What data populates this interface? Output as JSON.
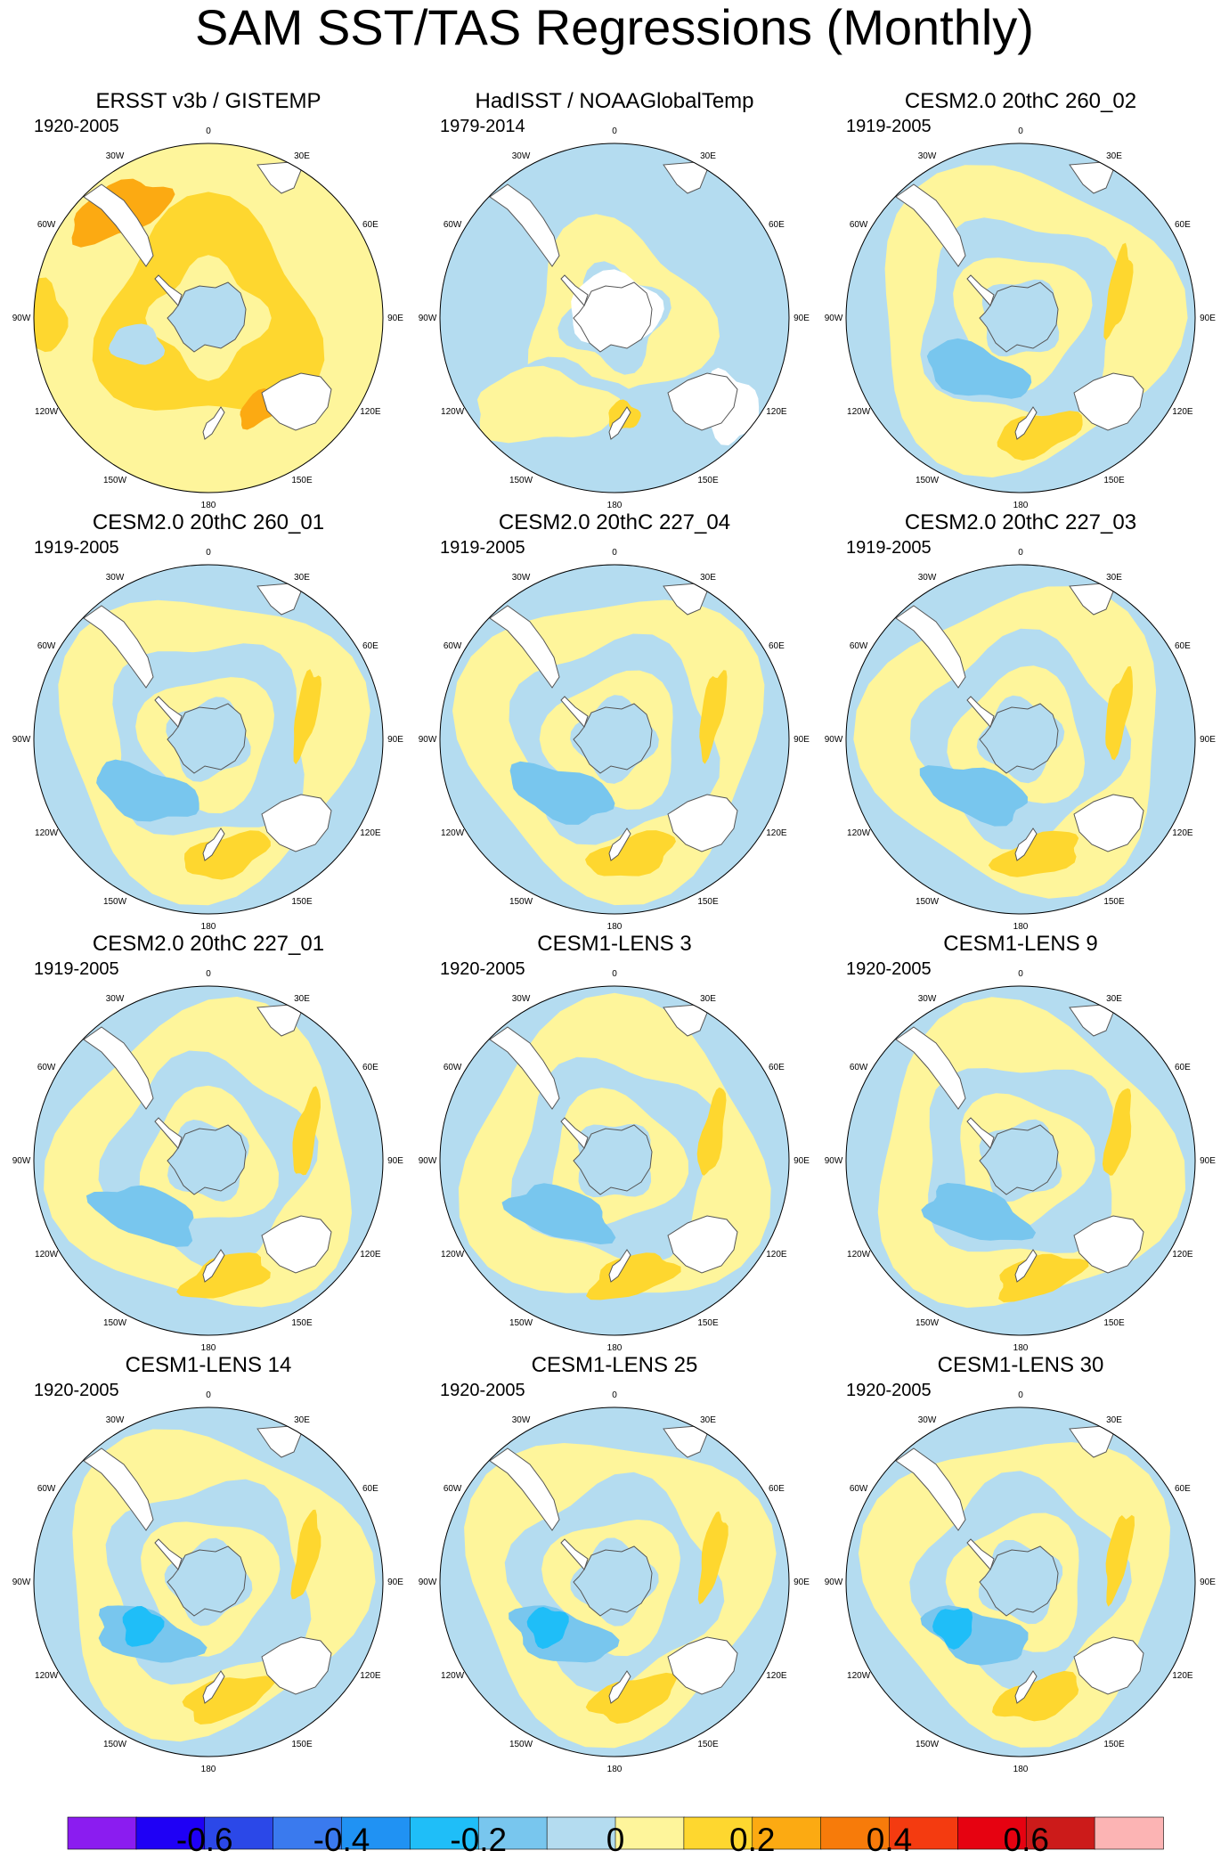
{
  "title": "SAM SST/TAS Regressions (Monthly)",
  "colors": {
    "ocean_neg_light": "#b4dcf0",
    "pos_light": "#fef59b",
    "pos_mid": "#fed72f",
    "pos_strong": "#fcaa12",
    "neg_mid": "#78c6ee",
    "neg_strong": "#1fbef8",
    "land": "#ffffff",
    "missing": "#ffffff"
  },
  "chart_data": {
    "type": "heatmap",
    "projection": "south polar stereographic",
    "longitude_labels": [
      "0",
      "30E",
      "60E",
      "90E",
      "120E",
      "150E",
      "180",
      "150W",
      "120W",
      "90W",
      "60W",
      "30W"
    ],
    "colorbar": {
      "levels": [
        -0.7,
        -0.6,
        -0.5,
        -0.4,
        -0.3,
        -0.2,
        -0.1,
        0,
        0.1,
        0.2,
        0.3,
        0.4,
        0.5,
        0.6,
        0.7
      ],
      "colors": [
        "#8b1cf0",
        "#1f00f5",
        "#2b48e8",
        "#3a7aee",
        "#2092f3",
        "#1fbef8",
        "#78c6ee",
        "#b4dcf0",
        "#fef59b",
        "#fed72f",
        "#fcaa12",
        "#f77b0a",
        "#f43b10",
        "#e60211",
        "#cc1b1a",
        "#fcb4b4"
      ],
      "tick_labels": [
        "-0.6",
        "-0.4",
        "-0.2",
        "0",
        "0.2",
        "0.4",
        "0.6"
      ],
      "tick_values": [
        -0.6,
        -0.4,
        -0.2,
        0,
        0.2,
        0.4,
        0.6
      ]
    },
    "panels": [
      {
        "title": "ERSST v3b / GISTEMP",
        "period": "1920-2005",
        "pattern": "warm"
      },
      {
        "title": "HadISST / NOAAGlobalTemp",
        "period": "1979-2014",
        "pattern": "neutral"
      },
      {
        "title": "CESM2.0 20thC 260_02",
        "period": "1919-2005",
        "pattern": "ring"
      },
      {
        "title": "CESM2.0 20thC 260_01",
        "period": "1919-2005",
        "pattern": "ring"
      },
      {
        "title": "CESM2.0 20thC 227_04",
        "period": "1919-2005",
        "pattern": "ring"
      },
      {
        "title": "CESM2.0 20thC 227_03",
        "period": "1919-2005",
        "pattern": "ring"
      },
      {
        "title": "CESM2.0 20thC 227_01",
        "period": "1919-2005",
        "pattern": "ring"
      },
      {
        "title": "CESM1-LENS 3",
        "period": "1920-2005",
        "pattern": "ring"
      },
      {
        "title": "CESM1-LENS 9",
        "period": "1920-2005",
        "pattern": "ring"
      },
      {
        "title": "CESM1-LENS 14",
        "period": "1920-2005",
        "pattern": "ring"
      },
      {
        "title": "CESM1-LENS 25",
        "period": "1920-2005",
        "pattern": "ring"
      },
      {
        "title": "CESM1-LENS 30",
        "period": "1920-2005",
        "pattern": "ring"
      }
    ]
  }
}
